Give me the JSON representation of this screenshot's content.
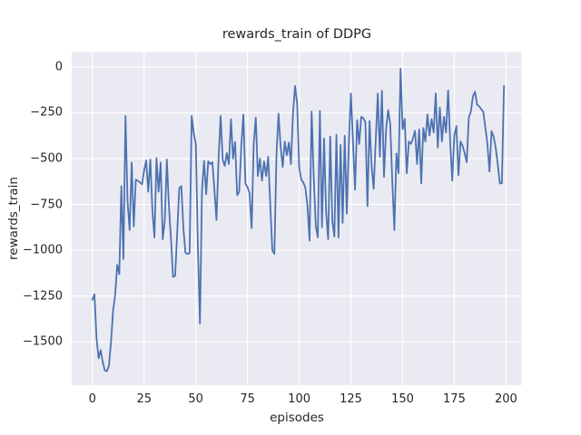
{
  "chart_data": {
    "type": "line",
    "title": "rewards_train of DDPG",
    "xlabel": "episodes",
    "ylabel": "rewards_train",
    "grid": true,
    "legend": null,
    "line_color": "#4c72b0",
    "axes_bg_color": "#eaeaf2",
    "grid_color": "#ffffff",
    "figure_bg_color": "#ffffff",
    "text_color": "#262626",
    "xlim": [
      -10,
      207.5
    ],
    "ylim": [
      -1736,
      81
    ],
    "xticks": {
      "values": [
        0,
        25,
        50,
        75,
        100,
        125,
        150,
        175,
        200
      ],
      "labels": [
        "0",
        "25",
        "50",
        "75",
        "100",
        "125",
        "150",
        "175",
        "200"
      ]
    },
    "yticks": {
      "values": [
        0,
        -250,
        -500,
        -750,
        -1000,
        -1250,
        -1500
      ],
      "labels": [
        "0",
        "−250",
        "−500",
        "−750",
        "−1000",
        "−1250",
        "−1500"
      ]
    },
    "x_description": "episode index, one point per episode starting at 0",
    "values": [
      -1270,
      -1240,
      -1480,
      -1590,
      -1545,
      -1610,
      -1655,
      -1660,
      -1630,
      -1500,
      -1330,
      -1245,
      -1080,
      -1130,
      -650,
      -1048,
      -267,
      -733,
      -890,
      -522,
      -870,
      -615,
      -620,
      -630,
      -640,
      -565,
      -510,
      -680,
      -505,
      -780,
      -930,
      -497,
      -680,
      -521,
      -940,
      -841,
      -505,
      -760,
      -940,
      -1145,
      -1140,
      -907,
      -661,
      -650,
      -880,
      -1013,
      -1020,
      -1015,
      -267,
      -360,
      -420,
      -980,
      -1400,
      -670,
      -513,
      -695,
      -515,
      -530,
      -520,
      -670,
      -835,
      -505,
      -267,
      -505,
      -540,
      -470,
      -530,
      -285,
      -500,
      -410,
      -700,
      -680,
      -430,
      -260,
      -637,
      -655,
      -690,
      -880,
      -420,
      -276,
      -595,
      -500,
      -620,
      -515,
      -595,
      -490,
      -750,
      -1000,
      -1020,
      -480,
      -255,
      -432,
      -546,
      -407,
      -481,
      -412,
      -530,
      -251,
      -103,
      -202,
      -550,
      -615,
      -630,
      -660,
      -760,
      -948,
      -243,
      -595,
      -866,
      -930,
      -240,
      -875,
      -390,
      -792,
      -940,
      -380,
      -840,
      -925,
      -370,
      -930,
      -425,
      -850,
      -375,
      -800,
      -420,
      -145,
      -410,
      -670,
      -290,
      -420,
      -272,
      -280,
      -300,
      -760,
      -295,
      -540,
      -665,
      -400,
      -145,
      -490,
      -130,
      -600,
      -341,
      -235,
      -310,
      -620,
      -890,
      -472,
      -580,
      -10,
      -340,
      -284,
      -580,
      -407,
      -420,
      -390,
      -349,
      -530,
      -341,
      -636,
      -333,
      -407,
      -259,
      -374,
      -285,
      -357,
      -144,
      -440,
      -222,
      -407,
      -272,
      -357,
      -128,
      -407,
      -620,
      -375,
      -322,
      -590,
      -407,
      -430,
      -470,
      -520,
      -276,
      -243,
      -160,
      -135,
      -205,
      -215,
      -230,
      -245,
      -330,
      -420,
      -570,
      -350,
      -380,
      -440,
      -530,
      -635,
      -635,
      -103
    ]
  }
}
